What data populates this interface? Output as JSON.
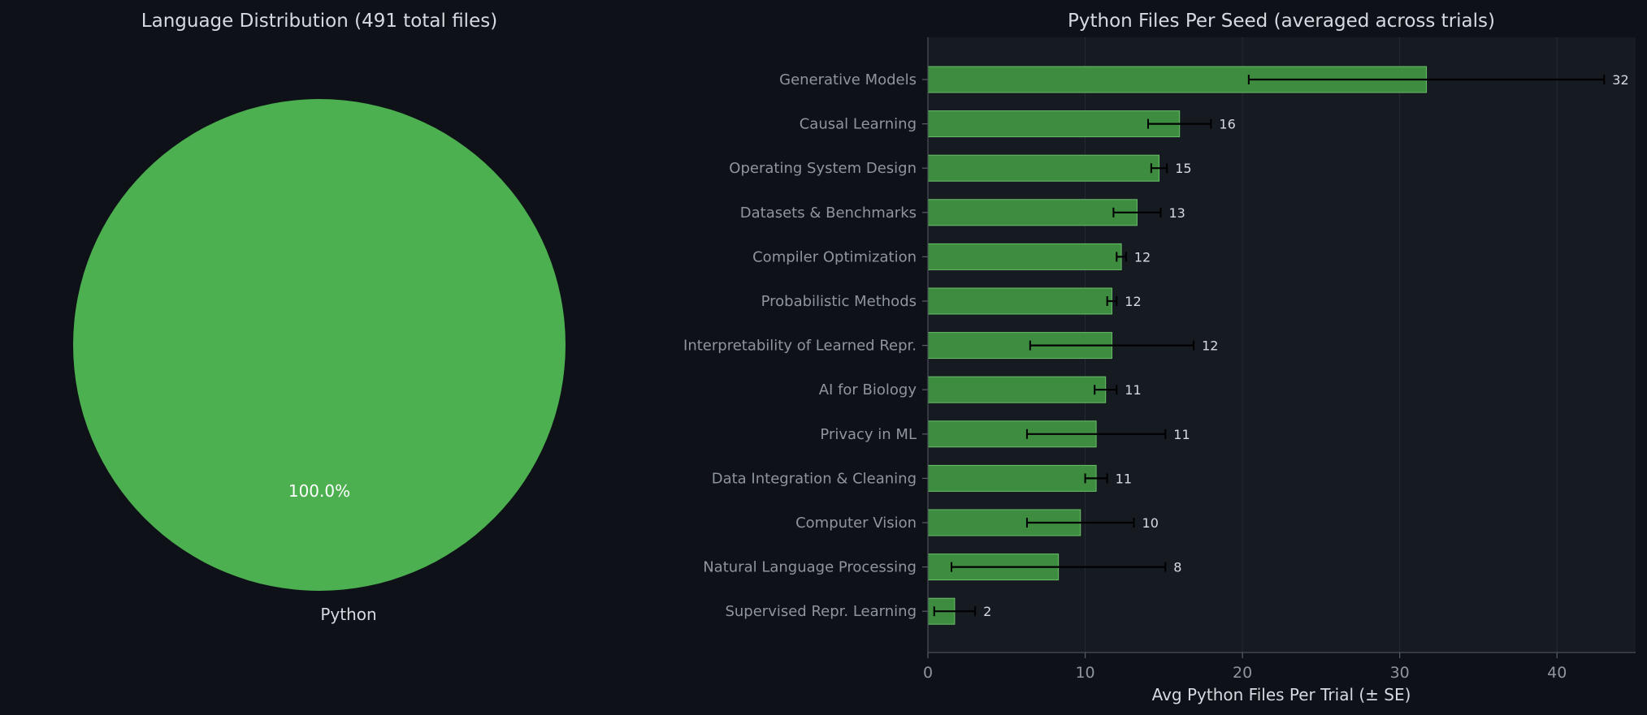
{
  "chart_data": [
    {
      "type": "pie",
      "title": "Language Distribution (491 total files)",
      "slices": [
        {
          "label": "Python",
          "value": 491,
          "percent_label": "100.0%",
          "color": "#4caf50"
        }
      ]
    },
    {
      "type": "bar",
      "orientation": "horizontal",
      "title": "Python Files Per Seed (averaged across trials)",
      "xlabel": "Avg Python Files Per Trial (± SE)",
      "ylabel": "",
      "xlim": [
        0,
        45
      ],
      "xticks": [
        0,
        10,
        20,
        30,
        40
      ],
      "grid": true,
      "bar_color": "#3d8c40",
      "bar_edge_color": "#6abf69",
      "error_bar_color": "#000000",
      "categories": [
        "Generative Models",
        "Causal Learning",
        "Operating System Design",
        "Datasets & Benchmarks",
        "Compiler Optimization",
        "Probabilistic Methods",
        "Interpretability of Learned Repr.",
        "AI for Biology",
        "Privacy in ML",
        "Data Integration & Cleaning",
        "Computer Vision",
        "Natural Language Processing",
        "Supervised Repr. Learning"
      ],
      "values": [
        31.7,
        16.0,
        14.7,
        13.3,
        12.3,
        11.7,
        11.7,
        11.3,
        10.7,
        10.7,
        9.7,
        8.3,
        1.7
      ],
      "errors": [
        11.3,
        2.0,
        0.5,
        1.5,
        0.3,
        0.3,
        5.2,
        0.7,
        4.4,
        0.7,
        3.4,
        6.8,
        1.3
      ],
      "value_labels": [
        "32",
        "16",
        "15",
        "13",
        "12",
        "12",
        "12",
        "11",
        "11",
        "11",
        "10",
        "8",
        "2"
      ]
    }
  ]
}
